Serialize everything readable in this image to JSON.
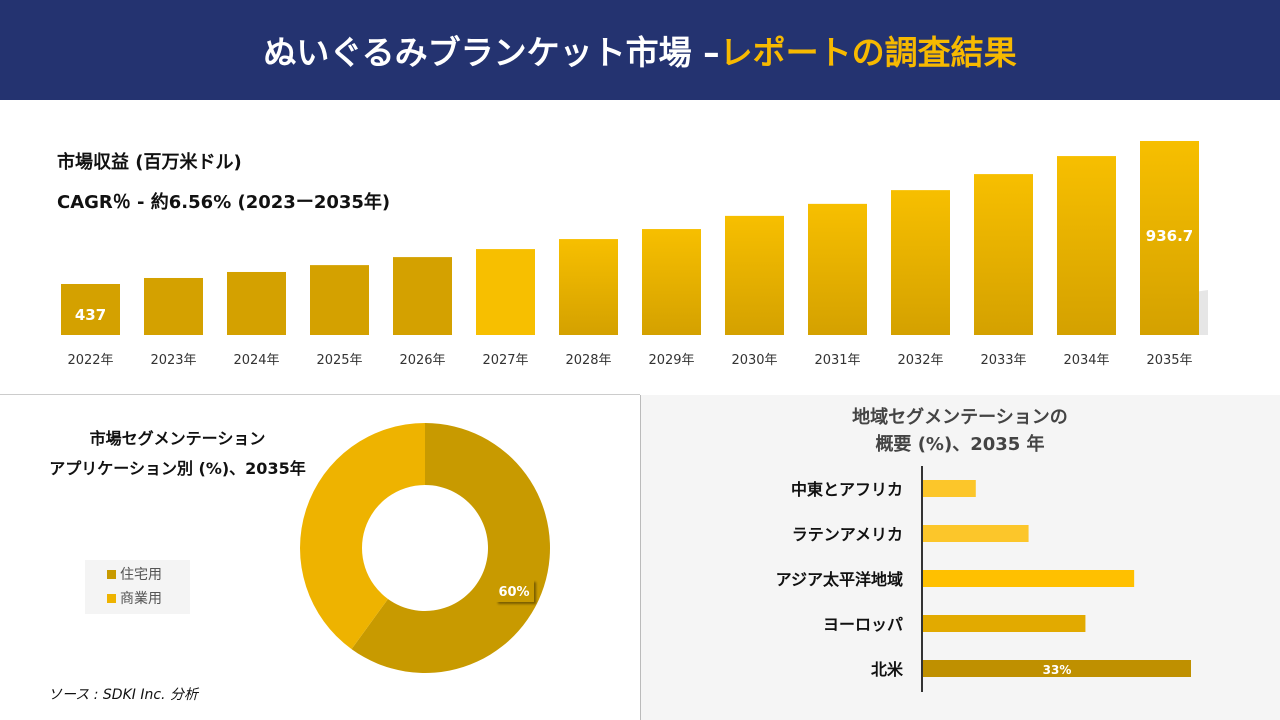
{
  "header": {
    "title_white": "ぬいぐるみブランケット市場 –",
    "title_yellow": "レポートの調査結果"
  },
  "revenue": {
    "label": "市場収益 (百万米ドル)",
    "cagr": "CAGR％ - 約6.56% (2023ー2035年)"
  },
  "chart_data": [
    {
      "type": "bar",
      "categories": [
        "2022年",
        "2023年",
        "2024年",
        "2025年",
        "2026年",
        "2027年",
        "2028年",
        "2029年",
        "2030年",
        "2031年",
        "2032年",
        "2033年",
        "2034年",
        "2035年"
      ],
      "values": [
        437,
        458,
        479,
        503,
        531,
        559,
        594,
        629,
        675,
        717,
        765,
        821,
        884,
        936.7
      ],
      "data_labels": {
        "0": "437",
        "13": "936.7"
      },
      "colors": [
        "#d4a100",
        "#f7bf00"
      ]
    },
    {
      "type": "pie",
      "title": "市場セグメンテーション\nアプリケーション別 (%)、2035年",
      "title_lines": [
        "市場セグメンテーション",
        "アプリケーション別 (%)、2035年"
      ],
      "categories": [
        "住宅用",
        "商業用"
      ],
      "values": [
        60,
        40
      ],
      "data_labels": [
        "60%",
        ""
      ],
      "colors": [
        "#c89a00",
        "#eeb300"
      ],
      "legend": "left"
    },
    {
      "type": "bar",
      "orientation": "horizontal",
      "title_lines": [
        "地域セグメンテーションの",
        "概要 (%)、2035 年"
      ],
      "categories": [
        "中東とアフリカ",
        "ラテンアメリカ",
        "アジア太平洋地域",
        "ヨーロッパ",
        "北米"
      ],
      "values": [
        6.5,
        13,
        26,
        20,
        33
      ],
      "data_labels": [
        "",
        "",
        "",
        "",
        "33%"
      ],
      "colors": [
        "#fcc62a",
        "#fcc62a",
        "#ffc000",
        "#e2aa00",
        "#bf9000"
      ]
    }
  ],
  "source": "ソース : SDKI Inc. 分析"
}
